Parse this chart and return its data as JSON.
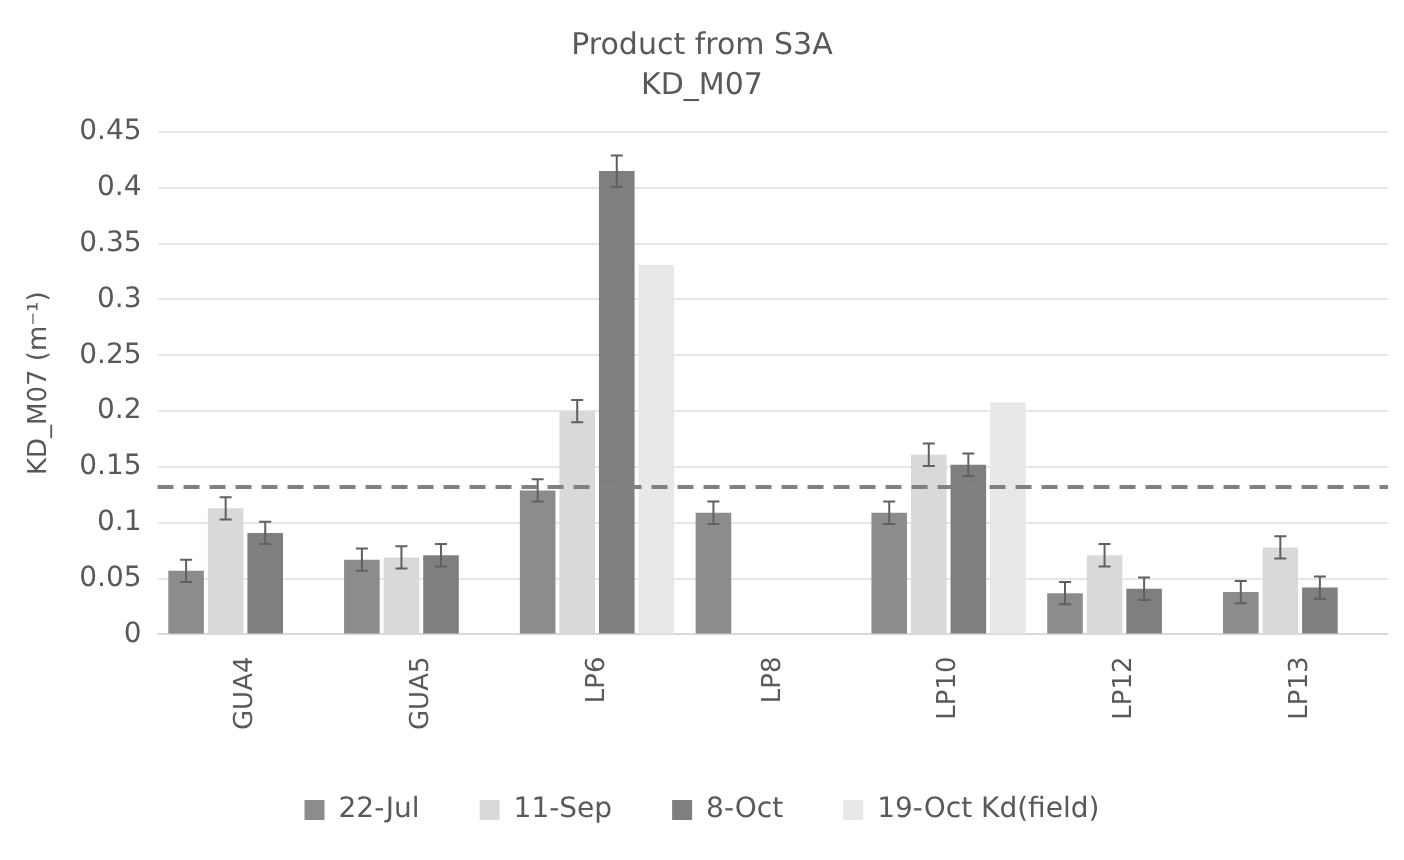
{
  "chart_data": {
    "type": "bar",
    "title": "Product from S3A",
    "subtitle": "KD_M07",
    "ylabel": "KD_M07 (m⁻¹)",
    "categories": [
      "GUA4",
      "GUA5",
      "LP6",
      "LP8",
      "LP10",
      "LP12",
      "LP13"
    ],
    "series": [
      {
        "name": "22-Jul",
        "color": "#8c8c8c",
        "values": [
          0.057,
          0.067,
          0.129,
          0.109,
          0.109,
          0.037,
          0.038
        ],
        "errors": [
          0.01,
          0.01,
          0.01,
          0.01,
          0.01,
          0.01,
          0.01
        ]
      },
      {
        "name": "11-Sep",
        "color": "#d9d9d9",
        "values": [
          0.113,
          0.069,
          0.2,
          null,
          0.161,
          0.071,
          0.078
        ],
        "errors": [
          0.01,
          0.01,
          0.01,
          null,
          0.01,
          0.01,
          0.01
        ]
      },
      {
        "name": "8-Oct",
        "color": "#7f7f7f",
        "values": [
          0.091,
          0.071,
          0.415,
          null,
          0.152,
          0.041,
          0.042
        ],
        "errors": [
          0.01,
          0.01,
          0.014,
          null,
          0.01,
          0.01,
          0.01
        ]
      },
      {
        "name": "19-Oct Kd(field)",
        "color": "#e8e8e8",
        "values": [
          null,
          null,
          0.331,
          null,
          0.208,
          null,
          null
        ]
      }
    ],
    "ylim": [
      0,
      0.45
    ],
    "yticks": [
      0,
      0.05,
      0.1,
      0.15,
      0.2,
      0.25,
      0.3,
      0.35,
      0.4,
      0.45
    ],
    "grid": "y",
    "legend": "bottom",
    "ref_lines": [
      {
        "axis": "y",
        "value": 0.132,
        "color": "#808080",
        "line_style": "dashed"
      }
    ]
  }
}
